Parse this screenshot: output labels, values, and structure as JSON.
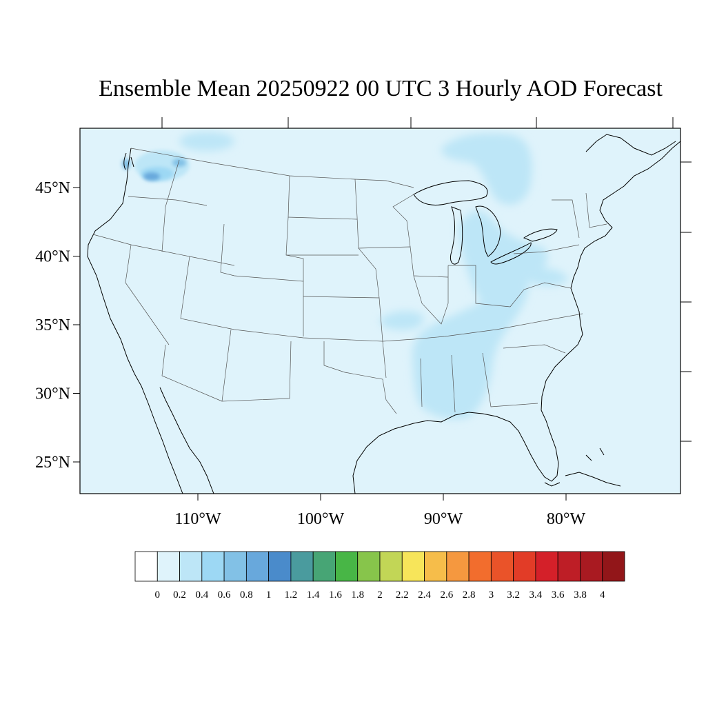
{
  "title": "Ensemble Mean 20250922 00 UTC 3 Hourly AOD Forecast",
  "map": {
    "region": "CONUS",
    "ocean_color": "#dff3fb",
    "land_base_color": "#dff3fb",
    "state_line_color": "#555555",
    "coast_line_color": "#000000",
    "lat_ticks": [
      {
        "value": 45,
        "label": "45°N"
      },
      {
        "value": 40,
        "label": "40°N"
      },
      {
        "value": 35,
        "label": "35°N"
      },
      {
        "value": 30,
        "label": "30°N"
      },
      {
        "value": 25,
        "label": "25°N"
      }
    ],
    "lon_ticks": [
      {
        "value": -110,
        "label": "110°W"
      },
      {
        "value": -100,
        "label": "100°W"
      },
      {
        "value": -90,
        "label": "90°W"
      },
      {
        "value": -80,
        "label": "80°W"
      }
    ],
    "aod_features": [
      {
        "area": "Southeast US (Mississippi, Alabama, Tennessee valley)",
        "level": 0.2
      },
      {
        "area": "Ohio / Indiana / Michigan corridor",
        "level": 0.2
      },
      {
        "area": "Northern Minnesota / Lake Superior",
        "level": 0.2
      },
      {
        "area": "Washington / northern Idaho smoke",
        "level": 0.8
      }
    ]
  },
  "colorbar": {
    "colors": [
      "#ffffff",
      "#dff3fb",
      "#bde6f7",
      "#9dd8f4",
      "#82c1e6",
      "#68a8dc",
      "#4a8bcb",
      "#4a9b9e",
      "#47a575",
      "#48b646",
      "#87c54b",
      "#c2d656",
      "#f7e55a",
      "#f6bd4a",
      "#f5983f",
      "#f26d2d",
      "#ea5329",
      "#e23c27",
      "#d42029",
      "#be1e26",
      "#a91a21",
      "#921619"
    ],
    "labels": [
      "0",
      "0.2",
      "0.4",
      "0.6",
      "0.8",
      "1",
      "1.2",
      "1.4",
      "1.6",
      "1.8",
      "2",
      "2.2",
      "2.4",
      "2.6",
      "2.8",
      "3",
      "3.2",
      "3.4",
      "3.6",
      "3.8",
      "4"
    ]
  }
}
